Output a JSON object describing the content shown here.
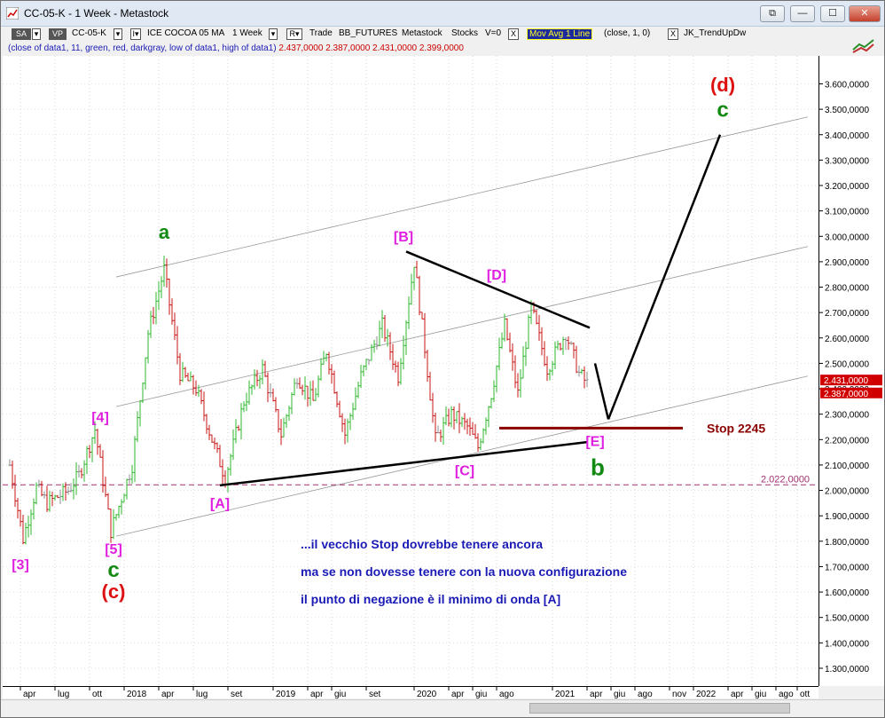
{
  "window": {
    "title": "CC-05-K - 1 Week - Metastock",
    "btn_minimize": "—",
    "btn_maximize": "☐",
    "btn_close": "✕"
  },
  "toolbar": {
    "sa": "SA",
    "vp": "VP",
    "symbol": "CC-05-K",
    "desc": "ICE COCOA 05 MA",
    "period": "1 Week",
    "r_label": "R",
    "trade": "Trade",
    "feed": "BB_FUTURES",
    "source": "Metastock",
    "kind": "Stocks",
    "v": "V=0",
    "indicator": "Mov Avg 1 Line",
    "indicator_params": "(close,  1,  0)",
    "indicator2": "JK_TrendUpDw",
    "checkbox_mark": "X"
  },
  "legend2": {
    "text": "(close of data1,  11,  green,  red,  darkgray,  low of data1,  high of data1)",
    "values": "2.437,0000  2.387,0000  2.431,0000  2.399,0000"
  },
  "colors": {
    "up": "#2db82d",
    "down": "#c81414",
    "neutral": "#8c8c8c",
    "wave_magenta": "#e020e0",
    "wave_green": "#138a13",
    "wave_red": "#dd1111",
    "stop": "#8b0000",
    "text_blue": "#1a1ab5"
  },
  "chart_data": {
    "type": "bar",
    "title": "CC-05-K - 1 Week",
    "ylim": [
      1230000,
      3710000
    ],
    "price_ticks": [
      "3.600,0000",
      "3.500,0000",
      "3.400,0000",
      "3.300,0000",
      "3.200,0000",
      "3.100,0000",
      "3.000,0000",
      "2.900,0000",
      "2.800,0000",
      "2.700,0000",
      "2.600,0000",
      "2.500,0000",
      "2.400,0000",
      "2.300,0000",
      "2.200,0000",
      "2.100,0000",
      "2.000,0000",
      "1.900,0000",
      "1.800,0000",
      "1.700,0000",
      "1.600,0000",
      "1.500,0000",
      "1.400,0000",
      "1.300,0000"
    ],
    "price_tick_values": [
      3600000,
      3500000,
      3400000,
      3300000,
      3200000,
      3100000,
      3000000,
      2900000,
      2800000,
      2700000,
      2600000,
      2500000,
      2400000,
      2300000,
      2200000,
      2100000,
      2000000,
      1900000,
      1800000,
      1700000,
      1600000,
      1500000,
      1400000,
      1300000
    ],
    "time_labels": [
      {
        "t": 4,
        "label": "apr"
      },
      {
        "t": 17,
        "label": "lug"
      },
      {
        "t": 30,
        "label": "ott"
      },
      {
        "t": 43,
        "label": "2018"
      },
      {
        "t": 56,
        "label": "apr"
      },
      {
        "t": 69,
        "label": "lug"
      },
      {
        "t": 82,
        "label": "set"
      },
      {
        "t": 99,
        "label": "2019"
      },
      {
        "t": 112,
        "label": "apr"
      },
      {
        "t": 121,
        "label": "giu"
      },
      {
        "t": 134,
        "label": "set"
      },
      {
        "t": 152,
        "label": "2020"
      },
      {
        "t": 165,
        "label": "apr"
      },
      {
        "t": 174,
        "label": "giu"
      },
      {
        "t": 183,
        "label": "ago"
      },
      {
        "t": 204,
        "label": "2021"
      },
      {
        "t": 217,
        "label": "apr"
      },
      {
        "t": 226,
        "label": "giu"
      },
      {
        "t": 235,
        "label": "ago"
      },
      {
        "t": 248,
        "label": "nov"
      },
      {
        "t": 257,
        "label": "2022"
      },
      {
        "t": 270,
        "label": "apr"
      },
      {
        "t": 279,
        "label": "giu"
      },
      {
        "t": 288,
        "label": "ago"
      },
      {
        "t": 296,
        "label": "ott"
      }
    ],
    "anchors": [
      [
        0,
        2100000
      ],
      [
        5,
        1810000
      ],
      [
        10,
        2010000
      ],
      [
        14,
        1950000
      ],
      [
        22,
        2000000
      ],
      [
        26,
        2060000
      ],
      [
        32,
        2240000
      ],
      [
        38,
        1840000
      ],
      [
        46,
        2100000
      ],
      [
        52,
        2620000
      ],
      [
        58,
        2870000
      ],
      [
        64,
        2460000
      ],
      [
        70,
        2400000
      ],
      [
        76,
        2200000
      ],
      [
        81,
        2050000
      ],
      [
        88,
        2350000
      ],
      [
        95,
        2480000
      ],
      [
        102,
        2220000
      ],
      [
        108,
        2450000
      ],
      [
        114,
        2350000
      ],
      [
        119,
        2550000
      ],
      [
        126,
        2220000
      ],
      [
        132,
        2450000
      ],
      [
        140,
        2650000
      ],
      [
        146,
        2450000
      ],
      [
        152,
        2900000
      ],
      [
        156,
        2560000
      ],
      [
        160,
        2200000
      ],
      [
        166,
        2300000
      ],
      [
        172,
        2250000
      ],
      [
        176,
        2170000
      ],
      [
        181,
        2380000
      ],
      [
        186,
        2650000
      ],
      [
        191,
        2380000
      ],
      [
        196,
        2720000
      ],
      [
        202,
        2480000
      ],
      [
        209,
        2620000
      ],
      [
        214,
        2460000
      ],
      [
        217,
        2420000
      ]
    ],
    "last_bar_t": 217,
    "stop_level": 2245000,
    "stop_label": "Stop 2245",
    "ref_level": 2022000,
    "ref_label": "2.022,0000",
    "last_close_label": "2.431,0000",
    "last_low_label": "2.387,0000",
    "trend_lines": [
      {
        "from": [
          79,
          2020000
        ],
        "to": [
          217,
          2190000
        ],
        "color": "#000000"
      },
      {
        "from": [
          149,
          2940000
        ],
        "to": [
          218,
          2640000
        ],
        "color": "#000000"
      },
      {
        "from": [
          220,
          2500000
        ],
        "to": [
          225,
          2280000
        ],
        "color": "#000000"
      },
      {
        "from": [
          225,
          2280000
        ],
        "to": [
          267,
          3400000
        ],
        "color": "#000000"
      },
      {
        "from": [
          184,
          2245000
        ],
        "to": [
          253,
          2245000
        ],
        "color": "#8b0000",
        "width": 3
      }
    ],
    "channel_lines": [
      {
        "from": [
          40,
          2840000
        ],
        "to": [
          300,
          3470000
        ]
      },
      {
        "from": [
          40,
          2330000
        ],
        "to": [
          300,
          2960000
        ]
      },
      {
        "from": [
          40,
          1820000
        ],
        "to": [
          300,
          2450000
        ]
      }
    ],
    "wave_labels": [
      {
        "text": "a",
        "t": 58,
        "p": 2990000,
        "color": "#138a13",
        "size": 22
      },
      {
        "text": "[B]",
        "t": 148,
        "p": 2980000,
        "color": "#e020e0",
        "size": 16
      },
      {
        "text": "[D]",
        "t": 183,
        "p": 2830000,
        "color": "#e020e0",
        "size": 16
      },
      {
        "text": "[4]",
        "t": 34,
        "p": 2270000,
        "color": "#e020e0",
        "size": 16
      },
      {
        "text": "[A]",
        "t": 79,
        "p": 1930000,
        "color": "#e020e0",
        "size": 16
      },
      {
        "text": "[C]",
        "t": 171,
        "p": 2060000,
        "color": "#e020e0",
        "size": 16
      },
      {
        "text": "[E]",
        "t": 220,
        "p": 2175000,
        "color": "#e020e0",
        "size": 16
      },
      {
        "text": "b",
        "t": 221,
        "p": 2060000,
        "color": "#138a13",
        "size": 26
      },
      {
        "text": "[3]",
        "t": 4,
        "p": 1690000,
        "color": "#e020e0",
        "size": 16
      },
      {
        "text": "[5]",
        "t": 39,
        "p": 1750000,
        "color": "#e020e0",
        "size": 16
      },
      {
        "text": "c",
        "t": 39,
        "p": 1660000,
        "color": "#138a13",
        "size": 24
      },
      {
        "text": "(c)",
        "t": 39,
        "p": 1575000,
        "color": "#dd1111",
        "size": 22
      },
      {
        "text": "(d)",
        "t": 268,
        "p": 3570000,
        "color": "#dd1111",
        "size": 22
      },
      {
        "text": "c",
        "t": 268,
        "p": 3470000,
        "color": "#138a13",
        "size": 24
      }
    ],
    "annotations": [
      "...il vecchio Stop dovrebbe tenere ancora",
      "ma se non dovesse tenere con la nuova configurazione",
      "il punto di negazione è il minimo di onda [A]"
    ]
  }
}
